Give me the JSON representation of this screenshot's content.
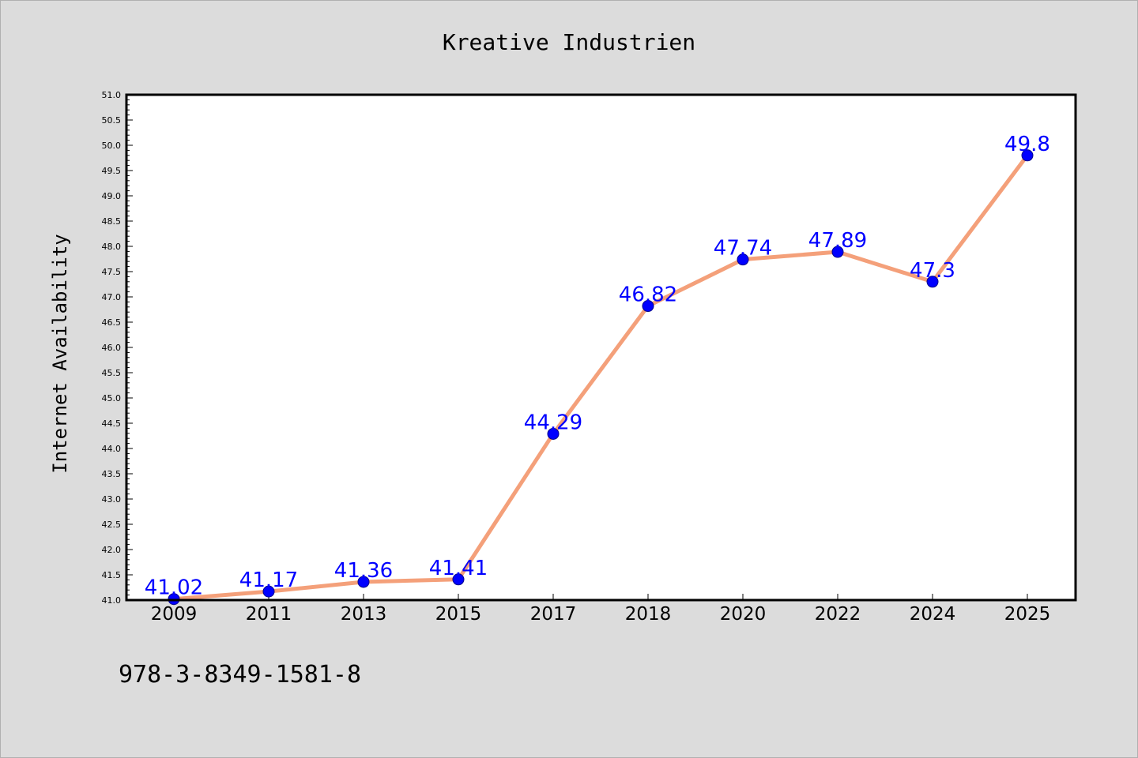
{
  "chart_data": {
    "type": "line",
    "title": "Kreative Industrien",
    "xlabel": "",
    "ylabel": "Internet Availability",
    "categories": [
      "2009",
      "2011",
      "2013",
      "2015",
      "2017",
      "2018",
      "2020",
      "2022",
      "2024",
      "2025"
    ],
    "values": [
      41.02,
      41.17,
      41.36,
      41.41,
      44.29,
      46.82,
      47.74,
      47.89,
      47.3,
      49.8
    ],
    "data_labels": [
      "41.02",
      "41.17",
      "41.36",
      "41.41",
      "44.29",
      "46.82",
      "47.74",
      "47.89",
      "47.3",
      "49.8"
    ],
    "ylim": [
      41.0,
      51.0
    ],
    "ytick_step": 0.5,
    "grid": false,
    "legend": "none",
    "colors": {
      "line": "#f4a07a",
      "marker": "#0000ff",
      "data_label": "#0000ff",
      "background": "#dcdcdc",
      "plot_area": "#ffffff"
    }
  },
  "footer": {
    "text": "978-3-8349-1581-8"
  }
}
